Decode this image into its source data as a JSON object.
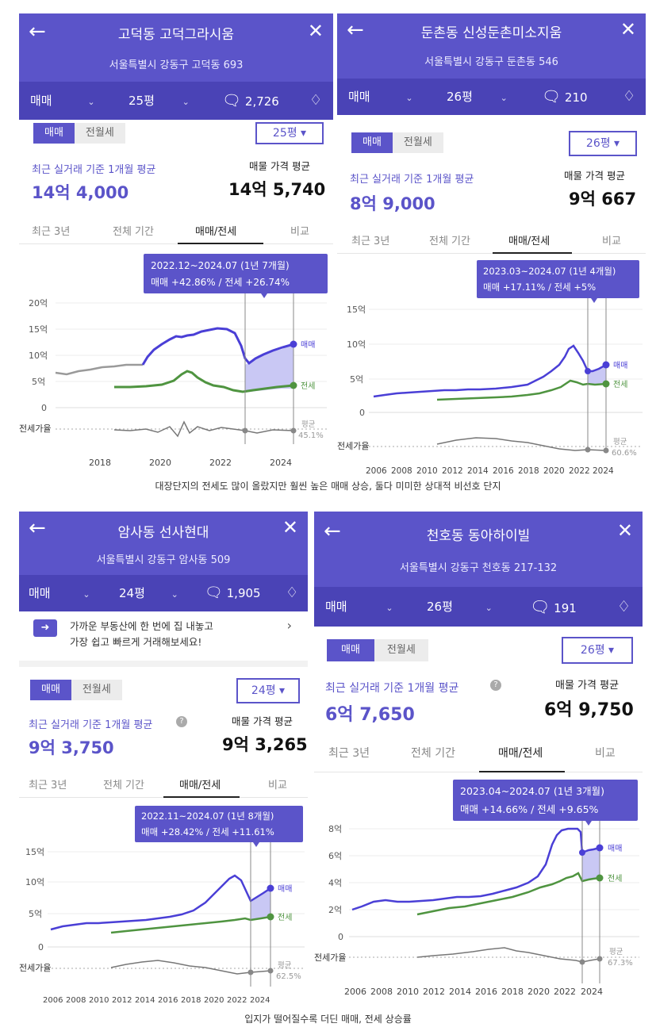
{
  "panels": [
    {
      "title": "고덕동 고덕그라시움",
      "address": "서울특별시 강동구 고덕동 693",
      "trade": "매매",
      "size": "25평",
      "comments": "2,726",
      "toggle_on": "매매",
      "toggle_off": "전월세",
      "size_select": "25평",
      "recent_label": "최근 실거래 기준 1개월 평균",
      "recent_value": "14억 4,000",
      "listing_label": "매물 가격 평균",
      "listing_value": "14억 5,740",
      "tabs": [
        "최근 3년",
        "전체 기간",
        "매매/전세",
        "비교"
      ],
      "tooltip_range": "2022.12~2024.07 (1년 7개월)",
      "tooltip_change": "매매 +42.86%  /  전세 +26.74%",
      "y_ticks": [
        "20억",
        "15억",
        "10억",
        "5억",
        "0"
      ],
      "x_ticks": [
        "2018",
        "2020",
        "2022",
        "2024"
      ],
      "series_sale": "매매",
      "series_jeonse": "전세",
      "ratio_label": "전세가율",
      "avg_label": "평균",
      "avg_value": "45.1%"
    },
    {
      "title": "둔촌동 신성둔촌미소지움",
      "address": "서울특별시 강동구 둔촌동 546",
      "trade": "매매",
      "size": "26평",
      "comments": "210",
      "toggle_on": "매매",
      "toggle_off": "전월세",
      "size_select": "26평",
      "recent_label": "최근 실거래 기준 1개월 평균",
      "recent_value": "8억 9,000",
      "listing_label": "매물 가격 평균",
      "listing_value": "9억 667",
      "tabs": [
        "최근 3년",
        "전체 기간",
        "매매/전세",
        "비교"
      ],
      "tooltip_range": "2023.03~2024.07 (1년 4개월)",
      "tooltip_change": "매매 +17.11%  /  전세 +5%",
      "y_ticks": [
        "15억",
        "10억",
        "5억",
        "0"
      ],
      "x_ticks": [
        "2006",
        "2008",
        "2010",
        "2012",
        "2014",
        "2016",
        "2018",
        "2020",
        "2022",
        "2024"
      ],
      "series_sale": "매매",
      "series_jeonse": "전세",
      "ratio_label": "전세가율",
      "avg_label": "평균",
      "avg_value": "60.6%"
    },
    {
      "title": "암사동 선사현대",
      "address": "서울특별시 강동구 암사동 509",
      "trade": "매매",
      "size": "24평",
      "comments": "1,905",
      "notice_line1": "가까운 부동산에 한 번에 집 내놓고",
      "notice_line2": "가장 쉽고 빠르게 거래해보세요!",
      "toggle_on": "매매",
      "toggle_off": "전월세",
      "size_select": "24평",
      "recent_label": "최근 실거래 기준 1개월 평균",
      "recent_value": "9억 3,750",
      "listing_label": "매물 가격 평균",
      "listing_value": "9억 3,265",
      "tabs": [
        "최근 3년",
        "전체 기간",
        "매매/전세",
        "비교"
      ],
      "tooltip_range": "2022.11~2024.07 (1년 8개월)",
      "tooltip_change": "매매 +28.42%  /  전세 +11.61%",
      "y_ticks": [
        "15억",
        "10억",
        "5억",
        "0"
      ],
      "x_ticks": [
        "2006",
        "2008",
        "2010",
        "2012",
        "2014",
        "2016",
        "2018",
        "2020",
        "2022",
        "2024"
      ],
      "series_sale": "매매",
      "series_jeonse": "전세",
      "ratio_label": "전세가율",
      "avg_label": "평균",
      "avg_value": "62.5%"
    },
    {
      "title": "천호동 동아하이빌",
      "address": "서울특별시 강동구 천호동 217-132",
      "trade": "매매",
      "size": "26평",
      "comments": "191",
      "toggle_on": "매매",
      "toggle_off": "전월세",
      "size_select": "26평",
      "recent_label": "최근 실거래 기준 1개월 평균",
      "recent_value": "6억 7,650",
      "listing_label": "매물 가격 평균",
      "listing_value": "6억 9,750",
      "tabs": [
        "최근 3년",
        "전체 기간",
        "매매/전세",
        "비교"
      ],
      "tooltip_range": "2023.04~2024.07 (1년 3개월)",
      "tooltip_change": "매매 +14.66%  /  전세 +9.65%",
      "y_ticks": [
        "8억",
        "6억",
        "4억",
        "2억",
        "0"
      ],
      "x_ticks": [
        "2006",
        "2008",
        "2010",
        "2012",
        "2014",
        "2016",
        "2018",
        "2020",
        "2022",
        "2024"
      ],
      "series_sale": "매매",
      "series_jeonse": "전세",
      "ratio_label": "전세가율",
      "avg_label": "평균",
      "avg_value": "67.3%"
    }
  ],
  "caption_top": "대장단지의 전세도 많이 올랐지만 훨씬 높은 매매 상승, 둘다 미미한 상대적 비선호 단지",
  "caption_bottom": "입지가 떨어질수록 더딘 매매, 전세 상승률",
  "colors": {
    "header": "#5b54c9",
    "bar": "#4a43b6",
    "sale": "#4a3fd6",
    "jeonse": "#4f9440",
    "prior": "#9a9a9a"
  }
}
